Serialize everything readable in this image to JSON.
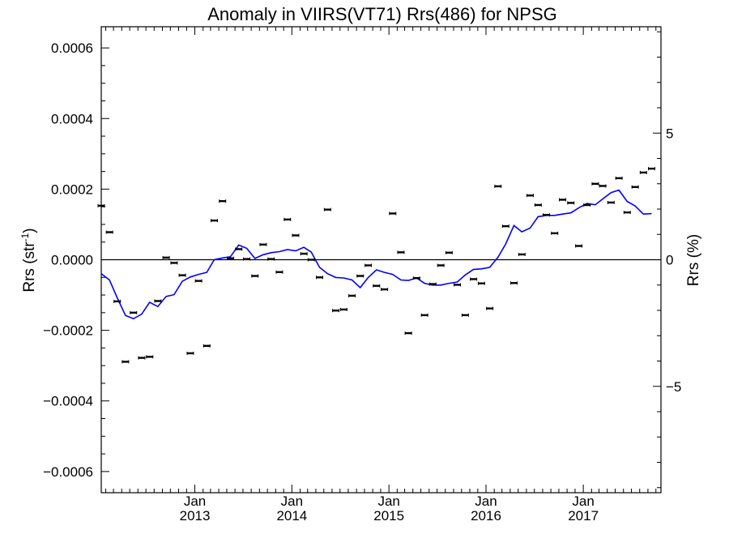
{
  "chart_data": {
    "type": "line",
    "title": "Anomaly in VIIRS(VT71) Rrs(486) for NPSG",
    "ylabel_left": {
      "text": "Rrs (str",
      "sup": "-1",
      "close": ")"
    },
    "ylabel_right": "Rrs (%)",
    "ylim_left": [
      -0.00066,
      0.00066
    ],
    "ylim_right": [
      -9.2,
      9.2
    ],
    "xlim": [
      "2012-01-15",
      "2017-10-20"
    ],
    "grid": false,
    "left_ticks": [
      {
        "value": 0.0006,
        "label": "0.0006"
      },
      {
        "value": 0.0004,
        "label": "0.0004"
      },
      {
        "value": 0.0002,
        "label": "0.0002"
      },
      {
        "value": 0.0,
        "label": "0.0000"
      },
      {
        "value": -0.0002,
        "label": "−0.0002"
      },
      {
        "value": -0.0004,
        "label": "−0.0004"
      },
      {
        "value": -0.0006,
        "label": "−0.0006"
      }
    ],
    "right_ticks": [
      {
        "value": 5,
        "label": "5"
      },
      {
        "value": 0,
        "label": "0"
      },
      {
        "value": -5,
        "label": "−5"
      }
    ],
    "x_ticks": [
      {
        "date": "2013-01-01",
        "month": "Jan",
        "year": "2013"
      },
      {
        "date": "2014-01-01",
        "month": "Jan",
        "year": "2014"
      },
      {
        "date": "2015-01-01",
        "month": "Jan",
        "year": "2015"
      },
      {
        "date": "2016-01-01",
        "month": "Jan",
        "year": "2016"
      },
      {
        "date": "2017-01-01",
        "month": "Jan",
        "year": "2017"
      }
    ],
    "zero_line": 0,
    "series": [
      {
        "kind": "points_with_errorbars",
        "axis": "left",
        "color": "#000000",
        "points": [
          [
            "2012-01-15",
            0.000153
          ],
          [
            "2012-02-15",
            7.8e-05
          ],
          [
            "2012-03-15",
            -0.000118
          ],
          [
            "2012-04-15",
            -0.000289
          ],
          [
            "2012-05-15",
            -0.00015
          ],
          [
            "2012-06-15",
            -0.000278
          ],
          [
            "2012-07-15",
            -0.000275
          ],
          [
            "2012-08-15",
            -0.000117
          ],
          [
            "2012-09-15",
            6e-06
          ],
          [
            "2012-10-15",
            -9e-06
          ],
          [
            "2012-11-15",
            -4.4e-05
          ],
          [
            "2012-12-15",
            -0.000265
          ],
          [
            "2013-01-15",
            -6e-05
          ],
          [
            "2013-02-15",
            -0.000244
          ],
          [
            "2013-03-15",
            0.000111
          ],
          [
            "2013-04-15",
            0.000166
          ],
          [
            "2013-05-15",
            4e-06
          ],
          [
            "2013-06-15",
            3e-05
          ],
          [
            "2013-07-15",
            2e-06
          ],
          [
            "2013-08-15",
            -4.6e-05
          ],
          [
            "2013-09-15",
            4.3e-05
          ],
          [
            "2013-10-15",
            2e-06
          ],
          [
            "2013-11-15",
            -3.5e-05
          ],
          [
            "2013-12-15",
            0.000114
          ],
          [
            "2014-01-15",
            6.9e-05
          ],
          [
            "2014-02-15",
            1.7e-05
          ],
          [
            "2014-03-15",
            0.0
          ],
          [
            "2014-04-15",
            -5e-05
          ],
          [
            "2014-05-15",
            0.000142
          ],
          [
            "2014-06-15",
            -0.000144
          ],
          [
            "2014-07-15",
            -0.000141
          ],
          [
            "2014-08-15",
            -0.000102
          ],
          [
            "2014-09-15",
            -4.6e-05
          ],
          [
            "2014-10-15",
            -1.6e-05
          ],
          [
            "2014-11-15",
            -7.4e-05
          ],
          [
            "2014-12-15",
            -8.4e-05
          ],
          [
            "2015-01-15",
            0.000131
          ],
          [
            "2015-02-15",
            2.1e-05
          ],
          [
            "2015-03-15",
            -0.000208
          ],
          [
            "2015-04-15",
            -5.2e-05
          ],
          [
            "2015-05-15",
            -0.000157
          ],
          [
            "2015-06-15",
            -6.9e-05
          ],
          [
            "2015-07-15",
            -1.6e-05
          ],
          [
            "2015-08-15",
            2e-05
          ],
          [
            "2015-09-15",
            -7.1e-05
          ],
          [
            "2015-10-15",
            -0.000157
          ],
          [
            "2015-11-15",
            -5.5e-05
          ],
          [
            "2015-12-15",
            -6.7e-05
          ],
          [
            "2016-01-15",
            -0.000138
          ],
          [
            "2016-02-15",
            0.000208
          ],
          [
            "2016-03-15",
            9.5e-05
          ],
          [
            "2016-04-15",
            -6.6e-05
          ],
          [
            "2016-05-15",
            1.5e-05
          ],
          [
            "2016-06-15",
            0.000182
          ],
          [
            "2016-07-15",
            0.000155
          ],
          [
            "2016-08-15",
            0.000127
          ],
          [
            "2016-09-15",
            7.5e-05
          ],
          [
            "2016-10-15",
            0.00017
          ],
          [
            "2016-11-15",
            0.000161
          ],
          [
            "2016-12-15",
            3.9e-05
          ],
          [
            "2017-01-15",
            0.000155
          ],
          [
            "2017-02-15",
            0.000215
          ],
          [
            "2017-03-15",
            0.000209
          ],
          [
            "2017-04-15",
            0.000162
          ],
          [
            "2017-05-15",
            0.000231
          ],
          [
            "2017-06-15",
            0.000134
          ],
          [
            "2017-07-15",
            0.000206
          ],
          [
            "2017-08-15",
            0.000247
          ],
          [
            "2017-09-15",
            0.000258
          ]
        ]
      },
      {
        "kind": "line",
        "axis": "right",
        "color": "#0000ff",
        "points": [
          [
            "2012-01-15",
            -0.55
          ],
          [
            "2012-02-15",
            -0.8
          ],
          [
            "2012-03-15",
            -1.5
          ],
          [
            "2012-04-15",
            -2.2
          ],
          [
            "2012-05-15",
            -2.33
          ],
          [
            "2012-06-15",
            -2.15
          ],
          [
            "2012-07-15",
            -1.68
          ],
          [
            "2012-08-15",
            -1.85
          ],
          [
            "2012-09-15",
            -1.45
          ],
          [
            "2012-10-15",
            -1.38
          ],
          [
            "2012-11-15",
            -0.85
          ],
          [
            "2012-12-15",
            -0.68
          ],
          [
            "2013-01-15",
            -0.58
          ],
          [
            "2013-02-15",
            -0.5
          ],
          [
            "2013-03-15",
            0.0
          ],
          [
            "2013-04-15",
            0.07
          ],
          [
            "2013-05-15",
            0.12
          ],
          [
            "2013-06-15",
            0.58
          ],
          [
            "2013-07-15",
            0.45
          ],
          [
            "2013-08-15",
            0.05
          ],
          [
            "2013-09-15",
            0.2
          ],
          [
            "2013-10-15",
            0.28
          ],
          [
            "2013-11-15",
            0.32
          ],
          [
            "2013-12-15",
            0.4
          ],
          [
            "2014-01-15",
            0.35
          ],
          [
            "2014-02-15",
            0.49
          ],
          [
            "2014-03-15",
            0.3
          ],
          [
            "2014-04-15",
            -0.3
          ],
          [
            "2014-05-15",
            -0.55
          ],
          [
            "2014-06-15",
            -0.7
          ],
          [
            "2014-07-15",
            -0.72
          ],
          [
            "2014-08-15",
            -0.8
          ],
          [
            "2014-09-15",
            -1.1
          ],
          [
            "2014-10-15",
            -0.7
          ],
          [
            "2014-11-15",
            -0.4
          ],
          [
            "2014-12-15",
            -0.5
          ],
          [
            "2015-01-15",
            -0.58
          ],
          [
            "2015-02-15",
            -0.8
          ],
          [
            "2015-03-15",
            -0.82
          ],
          [
            "2015-04-15",
            -0.72
          ],
          [
            "2015-05-15",
            -0.93
          ],
          [
            "2015-06-15",
            -1.0
          ],
          [
            "2015-07-15",
            -1.0
          ],
          [
            "2015-08-15",
            -0.93
          ],
          [
            "2015-09-15",
            -0.88
          ],
          [
            "2015-10-15",
            -0.6
          ],
          [
            "2015-11-15",
            -0.38
          ],
          [
            "2015-12-15",
            -0.36
          ],
          [
            "2016-01-15",
            -0.3
          ],
          [
            "2016-02-15",
            0.1
          ],
          [
            "2016-03-15",
            0.62
          ],
          [
            "2016-04-15",
            1.35
          ],
          [
            "2016-05-15",
            1.1
          ],
          [
            "2016-06-15",
            1.25
          ],
          [
            "2016-07-15",
            1.7
          ],
          [
            "2016-08-15",
            1.75
          ],
          [
            "2016-09-15",
            1.75
          ],
          [
            "2016-10-15",
            1.8
          ],
          [
            "2016-11-15",
            1.85
          ],
          [
            "2016-12-15",
            2.05
          ],
          [
            "2017-01-15",
            2.22
          ],
          [
            "2017-02-15",
            2.17
          ],
          [
            "2017-03-15",
            2.4
          ],
          [
            "2017-04-15",
            2.65
          ],
          [
            "2017-05-15",
            2.75
          ],
          [
            "2017-06-15",
            2.3
          ],
          [
            "2017-07-15",
            2.12
          ],
          [
            "2017-08-15",
            1.8
          ],
          [
            "2017-09-15",
            1.82
          ]
        ]
      }
    ]
  }
}
